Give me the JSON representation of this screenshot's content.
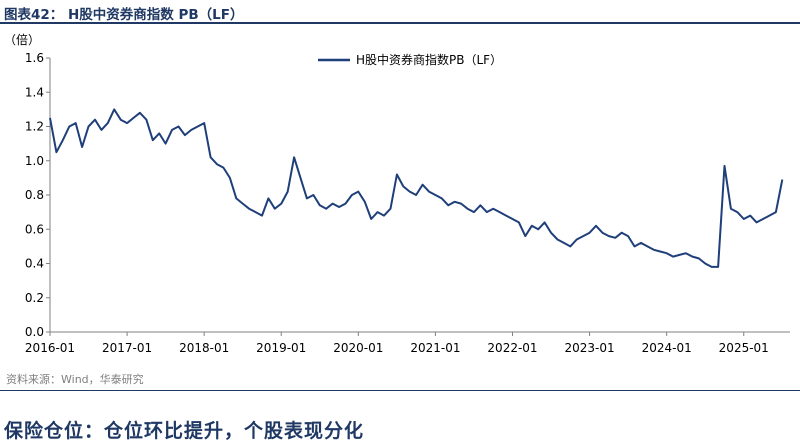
{
  "figure_title": "图表42： H股中资券商指数 PB（LF）",
  "source": "资料来源：Wind，华泰研究",
  "section_heading": "保险仓位：仓位环比提升，个股表现分化",
  "colors": {
    "line": "#1f3f7a",
    "accent": "#1f3864",
    "axis": "#808080"
  },
  "chart_data": {
    "type": "line",
    "title": "",
    "ylabel": "（倍）",
    "xlabel": "",
    "ylim": [
      0,
      1.6
    ],
    "yticks": [
      "0.0",
      "0.2",
      "0.4",
      "0.6",
      "0.8",
      "1.0",
      "1.2",
      "1.4",
      "1.6"
    ],
    "xticks": [
      "2016-01",
      "2017-01",
      "2018-01",
      "2019-01",
      "2020-01",
      "2021-01",
      "2022-01",
      "2023-01",
      "2024-01",
      "2025-01"
    ],
    "legend_position": "top-center",
    "grid": false,
    "series": [
      {
        "name": "H股中资券商指数PB（LF）",
        "x": [
          "2016-01",
          "2016-02",
          "2016-03",
          "2016-04",
          "2016-05",
          "2016-06",
          "2016-07",
          "2016-08",
          "2016-09",
          "2016-10",
          "2016-11",
          "2016-12",
          "2017-01",
          "2017-02",
          "2017-03",
          "2017-04",
          "2017-05",
          "2017-06",
          "2017-07",
          "2017-08",
          "2017-09",
          "2017-10",
          "2017-11",
          "2017-12",
          "2018-01",
          "2018-02",
          "2018-03",
          "2018-04",
          "2018-05",
          "2018-06",
          "2018-07",
          "2018-08",
          "2018-09",
          "2018-10",
          "2018-11",
          "2018-12",
          "2019-01",
          "2019-02",
          "2019-03",
          "2019-04",
          "2019-05",
          "2019-06",
          "2019-07",
          "2019-08",
          "2019-09",
          "2019-10",
          "2019-11",
          "2019-12",
          "2020-01",
          "2020-02",
          "2020-03",
          "2020-04",
          "2020-05",
          "2020-06",
          "2020-07",
          "2020-08",
          "2020-09",
          "2020-10",
          "2020-11",
          "2020-12",
          "2021-01",
          "2021-02",
          "2021-03",
          "2021-04",
          "2021-05",
          "2021-06",
          "2021-07",
          "2021-08",
          "2021-09",
          "2021-10",
          "2021-11",
          "2021-12",
          "2022-01",
          "2022-02",
          "2022-03",
          "2022-04",
          "2022-05",
          "2022-06",
          "2022-07",
          "2022-08",
          "2022-09",
          "2022-10",
          "2022-11",
          "2022-12",
          "2023-01",
          "2023-02",
          "2023-03",
          "2023-04",
          "2023-05",
          "2023-06",
          "2023-07",
          "2023-08",
          "2023-09",
          "2023-10",
          "2023-11",
          "2023-12",
          "2024-01",
          "2024-02",
          "2024-03",
          "2024-04",
          "2024-05",
          "2024-06",
          "2024-07",
          "2024-08",
          "2024-09",
          "2024-10",
          "2024-11",
          "2024-12",
          "2025-01",
          "2025-02",
          "2025-03",
          "2025-04",
          "2025-05",
          "2025-06",
          "2025-07"
        ],
        "values": [
          1.25,
          1.05,
          1.12,
          1.2,
          1.22,
          1.08,
          1.2,
          1.24,
          1.18,
          1.22,
          1.3,
          1.24,
          1.22,
          1.25,
          1.28,
          1.24,
          1.12,
          1.16,
          1.1,
          1.18,
          1.2,
          1.15,
          1.18,
          1.2,
          1.22,
          1.02,
          0.98,
          0.96,
          0.9,
          0.78,
          0.75,
          0.72,
          0.7,
          0.68,
          0.78,
          0.72,
          0.75,
          0.82,
          1.02,
          0.9,
          0.78,
          0.8,
          0.74,
          0.72,
          0.75,
          0.73,
          0.75,
          0.8,
          0.82,
          0.76,
          0.66,
          0.7,
          0.68,
          0.72,
          0.92,
          0.85,
          0.82,
          0.8,
          0.86,
          0.82,
          0.8,
          0.78,
          0.74,
          0.76,
          0.75,
          0.72,
          0.7,
          0.74,
          0.7,
          0.72,
          0.7,
          0.68,
          0.66,
          0.64,
          0.56,
          0.62,
          0.6,
          0.64,
          0.58,
          0.54,
          0.52,
          0.5,
          0.54,
          0.56,
          0.58,
          0.62,
          0.58,
          0.56,
          0.55,
          0.58,
          0.56,
          0.5,
          0.52,
          0.5,
          0.48,
          0.47,
          0.46,
          0.44,
          0.45,
          0.46,
          0.44,
          0.43,
          0.4,
          0.38,
          0.38,
          0.97,
          0.72,
          0.7,
          0.66,
          0.68,
          0.64,
          0.66,
          0.68,
          0.7,
          0.89
        ]
      }
    ]
  }
}
